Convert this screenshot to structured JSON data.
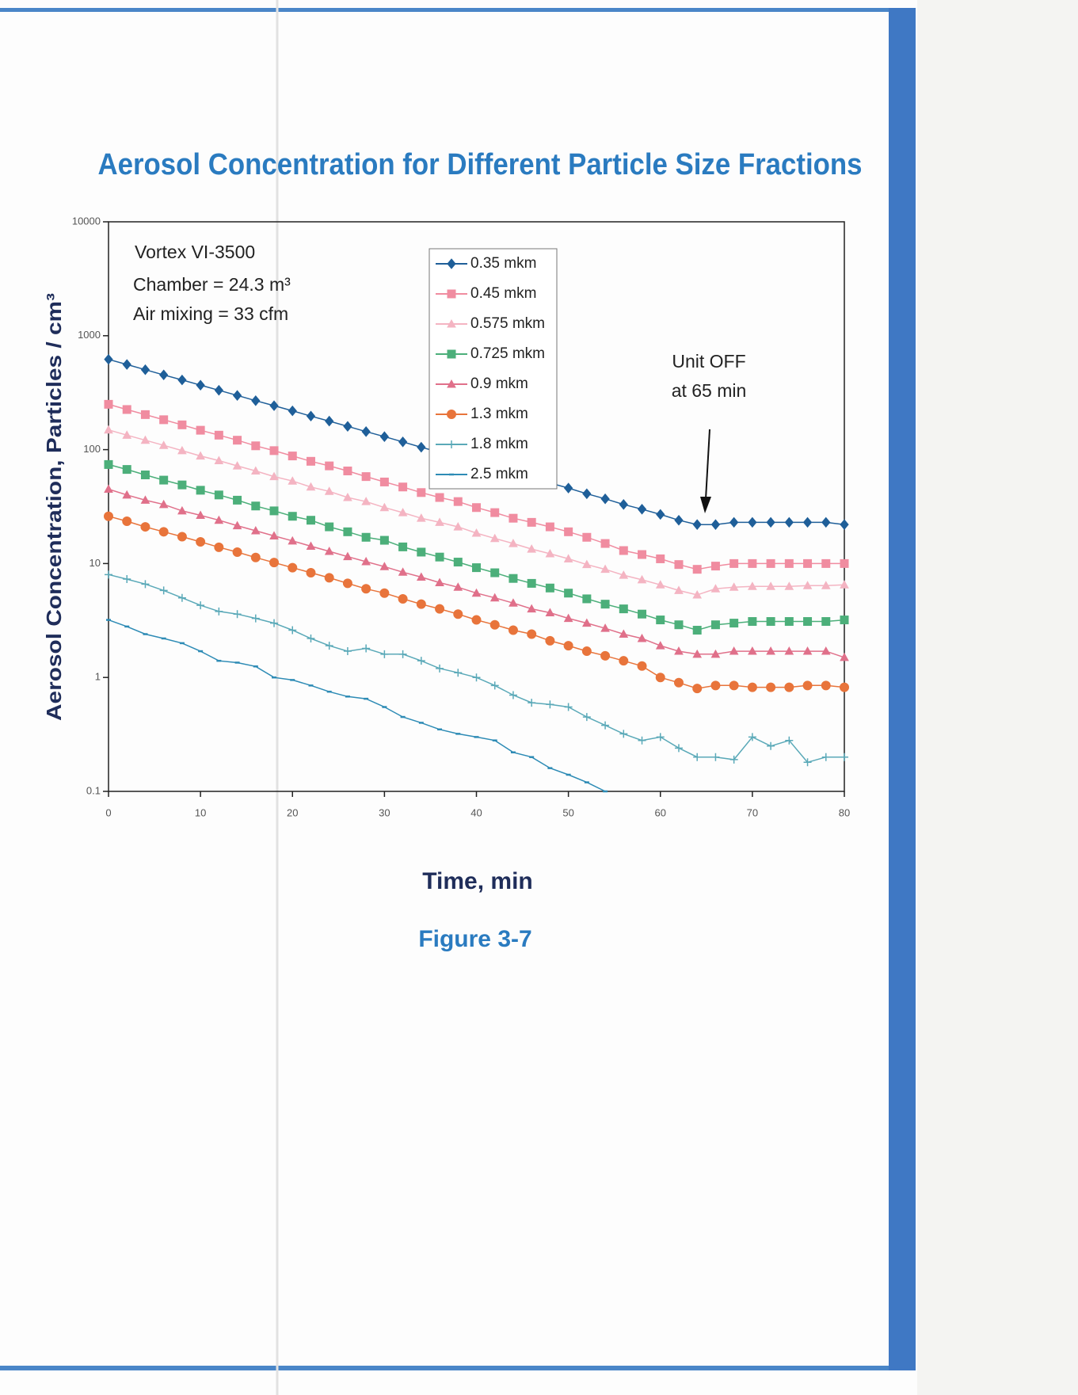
{
  "chart_data": {
    "type": "line",
    "title": "Aerosol Concentration for Different Particle Size Fractions",
    "x_label": "Time, min",
    "y_label": "Aerosol Concentration, Particles / cm³",
    "annotations": [
      "Vortex VI-3500",
      "Chamber = 24.3 m³",
      "Air mixing = 33 cfm",
      "Unit OFF",
      "at 65 min"
    ],
    "figure_label": "Figure 3-7",
    "y_scale": "log",
    "grid": false,
    "xlim": [
      0,
      80
    ],
    "xticks": [
      0,
      10,
      20,
      30,
      40,
      50,
      60,
      70,
      80
    ],
    "ylim": [
      0.1,
      10000
    ],
    "yticks": [
      0.1,
      1,
      10,
      100,
      1000,
      10000
    ],
    "x": [
      0,
      2,
      4,
      6,
      8,
      10,
      12,
      14,
      16,
      18,
      20,
      22,
      24,
      26,
      28,
      30,
      32,
      34,
      36,
      38,
      40,
      42,
      44,
      46,
      48,
      50,
      52,
      54,
      56,
      58,
      60,
      62,
      64,
      66,
      68,
      70,
      72,
      74,
      76,
      78,
      80
    ],
    "series": [
      {
        "name": "0.35 mkm",
        "color": "#1f5f99",
        "marker": "diamond",
        "values": [
          620,
          559,
          503,
          453,
          409,
          368,
          332,
          299,
          269,
          243,
          219,
          197,
          178,
          160,
          144,
          130,
          117,
          105,
          95,
          86,
          77,
          69,
          62,
          56,
          51,
          46,
          41,
          37,
          33,
          30,
          27,
          24,
          22,
          22,
          23,
          23,
          23,
          23,
          23,
          23,
          22
        ]
      },
      {
        "name": "0.45 mkm",
        "color": "#f08ca0",
        "marker": "square",
        "values": [
          250,
          225,
          203,
          183,
          165,
          148,
          134,
          121,
          108,
          98,
          88,
          79,
          72,
          65,
          58,
          52,
          47,
          42,
          38,
          35,
          31,
          28,
          25,
          23,
          21,
          19,
          17,
          15,
          13,
          12,
          11,
          9.8,
          8.9,
          9.5,
          10,
          10,
          10,
          10,
          10,
          10,
          10
        ]
      },
      {
        "name": "0.575 mkm",
        "color": "#f4b4c2",
        "marker": "triangle",
        "values": [
          149,
          134,
          121,
          109,
          98,
          88,
          80,
          72,
          65,
          58,
          53,
          47,
          43,
          38,
          35,
          31,
          28,
          25,
          23,
          21,
          18.5,
          16.6,
          15,
          13.4,
          12.2,
          11,
          9.8,
          8.9,
          7.9,
          7.2,
          6.5,
          5.8,
          5.3,
          6,
          6.2,
          6.3,
          6.3,
          6.3,
          6.4,
          6.4,
          6.5
        ]
      },
      {
        "name": "0.725 mkm",
        "color": "#4caf7a",
        "marker": "square",
        "values": [
          74,
          67,
          60,
          54,
          49,
          44,
          40,
          36,
          32,
          29,
          26,
          24,
          21,
          19,
          17,
          16,
          14,
          12.6,
          11.4,
          10.3,
          9.2,
          8.3,
          7.4,
          6.7,
          6.1,
          5.5,
          4.9,
          4.4,
          4,
          3.6,
          3.2,
          2.9,
          2.6,
          2.9,
          3,
          3.1,
          3.1,
          3.1,
          3.1,
          3.1,
          3.2
        ]
      },
      {
        "name": "0.9 mkm",
        "color": "#e0708a",
        "marker": "triangle",
        "values": [
          45,
          40,
          36,
          33,
          29,
          26.5,
          24,
          21.5,
          19.4,
          17.5,
          15.8,
          14.2,
          12.8,
          11.5,
          10.4,
          9.4,
          8.4,
          7.6,
          6.8,
          6.2,
          5.5,
          5,
          4.5,
          4,
          3.7,
          3.3,
          3,
          2.7,
          2.4,
          2.2,
          1.9,
          1.7,
          1.6,
          1.6,
          1.7,
          1.7,
          1.7,
          1.7,
          1.7,
          1.7,
          1.5
        ]
      },
      {
        "name": "1.3 mkm",
        "color": "#e8743b",
        "marker": "circle",
        "values": [
          26,
          23.5,
          21,
          19,
          17.2,
          15.5,
          13.9,
          12.6,
          11.3,
          10.2,
          9.2,
          8.3,
          7.5,
          6.7,
          6,
          5.5,
          4.9,
          4.4,
          4,
          3.6,
          3.2,
          2.9,
          2.6,
          2.4,
          2.1,
          1.9,
          1.7,
          1.55,
          1.4,
          1.26,
          1,
          0.9,
          0.8,
          0.85,
          0.85,
          0.82,
          0.82,
          0.82,
          0.85,
          0.85,
          0.82
        ]
      },
      {
        "name": "1.8 mkm",
        "color": "#5aa9b8",
        "marker": "plus",
        "values": [
          8,
          7.3,
          6.6,
          5.8,
          5,
          4.3,
          3.8,
          3.6,
          3.3,
          3,
          2.6,
          2.2,
          1.9,
          1.7,
          1.8,
          1.6,
          1.6,
          1.4,
          1.2,
          1.1,
          1,
          0.85,
          0.7,
          0.6,
          0.58,
          0.55,
          0.45,
          0.38,
          0.32,
          0.28,
          0.3,
          0.24,
          0.2,
          0.2,
          0.19,
          0.3,
          0.25,
          0.28,
          0.18,
          0.2,
          0.2
        ]
      },
      {
        "name": "2.5 mkm",
        "color": "#2d8bb5",
        "marker": "dash",
        "values": [
          3.2,
          2.8,
          2.4,
          2.2,
          2,
          1.7,
          1.4,
          1.35,
          1.25,
          1,
          0.95,
          0.85,
          0.75,
          0.68,
          0.65,
          0.55,
          0.45,
          0.4,
          0.35,
          0.32,
          0.3,
          0.28,
          0.22,
          0.2,
          0.16,
          0.14,
          0.12,
          0.1,
          null,
          null,
          null,
          null,
          null,
          null,
          null,
          null,
          null,
          null,
          null,
          null,
          null
        ]
      }
    ]
  }
}
